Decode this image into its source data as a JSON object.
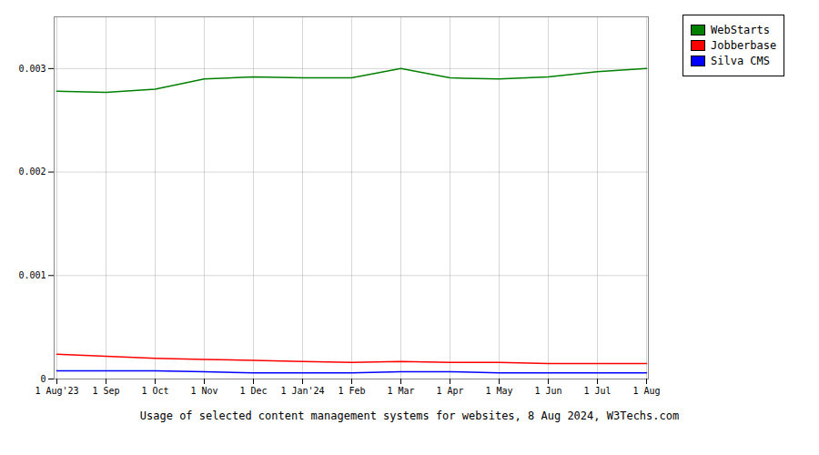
{
  "chart_data": {
    "type": "line",
    "title": "Usage of selected content management systems for websites, 8 Aug 2024, W3Techs.com",
    "categories": [
      "1 Aug'23",
      "1 Sep",
      "1 Oct",
      "1 Nov",
      "1 Dec",
      "1 Jan'24",
      "1 Feb",
      "1 Mar",
      "1 Apr",
      "1 May",
      "1 Jun",
      "1 Jul",
      "1 Aug"
    ],
    "series": [
      {
        "name": "WebStarts",
        "color": "#008000",
        "values": [
          0.00278,
          0.00277,
          0.0028,
          0.0029,
          0.00292,
          0.00291,
          0.00291,
          0.003,
          0.00291,
          0.0029,
          0.00292,
          0.00297,
          0.003
        ]
      },
      {
        "name": "Jobberbase",
        "color": "#ff0000",
        "values": [
          0.00024,
          0.00022,
          0.0002,
          0.00019,
          0.00018,
          0.00017,
          0.00016,
          0.00017,
          0.00016,
          0.00016,
          0.00015,
          0.00015,
          0.00015
        ]
      },
      {
        "name": "Silva CMS",
        "color": "#0000ff",
        "values": [
          8e-05,
          8e-05,
          8e-05,
          7e-05,
          6e-05,
          6e-05,
          6e-05,
          7e-05,
          7e-05,
          6e-05,
          6e-05,
          6e-05,
          6e-05
        ]
      }
    ],
    "ylim": [
      0,
      0.0035
    ],
    "yticks": [
      0,
      0.001,
      0.002,
      0.003
    ],
    "grid": true,
    "legend": "right"
  }
}
